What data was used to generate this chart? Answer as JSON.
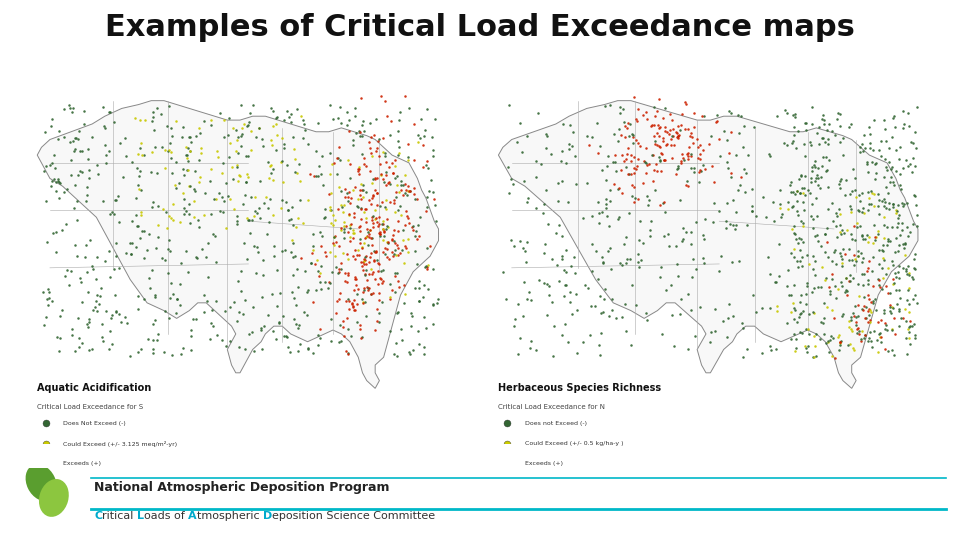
{
  "title": "Examples of Critical Load Exceedance maps",
  "title_fontsize": 22,
  "title_fontweight": "bold",
  "background_color": "#ffffff",
  "map1_label": "Aquatic Acidification",
  "map1_sublabel": "Critical Load Exceedance for S",
  "map1_legend": [
    {
      "color": "#336633",
      "text": "Does Not Exceed (-)"
    },
    {
      "color": "#cccc00",
      "text": "Could Exceed (+/- 3.125 meq/m²-yr)"
    },
    {
      "color": "#cc2200",
      "text": "Exceeds (+)"
    }
  ],
  "map2_label": "Herbaceous Species Richness",
  "map2_sublabel": "Critical Load Exceedance for N",
  "map2_legend": [
    {
      "color": "#336633",
      "text": "Does not Exceed (-)"
    },
    {
      "color": "#cccc00",
      "text": "Could Exceed (+/- 0.5 kg/ha-y )"
    },
    {
      "color": "#cc2200",
      "text": "Exceeds (+)"
    }
  ],
  "footer_org": "National Atmospheric Deposition Program",
  "footer_committee_parts": [
    {
      "text": "C",
      "color": "#00aacc",
      "bold": true
    },
    {
      "text": "ritical ",
      "color": "#333333",
      "bold": false
    },
    {
      "text": "L",
      "color": "#00aacc",
      "bold": true
    },
    {
      "text": "oads of ",
      "color": "#333333",
      "bold": false
    },
    {
      "text": "A",
      "color": "#00aacc",
      "bold": true
    },
    {
      "text": "tmospheric ",
      "color": "#333333",
      "bold": false
    },
    {
      "text": "D",
      "color": "#00aacc",
      "bold": true
    },
    {
      "text": "eposition Science Committee",
      "color": "#333333",
      "bold": false
    }
  ],
  "footer_line_color": "#00b8c8",
  "logo_color1": "#5a9e2f",
  "logo_color2": "#8cc63f"
}
